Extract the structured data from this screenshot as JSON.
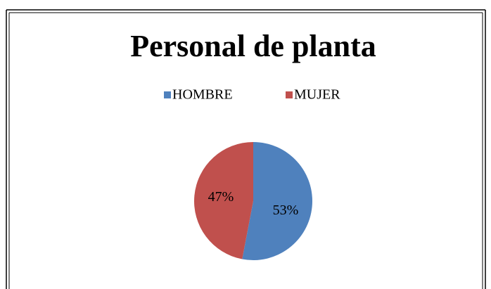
{
  "chart_data": {
    "type": "pie",
    "title": "Personal de planta",
    "categories": [
      "HOMBRE",
      "MUJER"
    ],
    "values": [
      53,
      47
    ],
    "value_labels": [
      "53%",
      "47%"
    ],
    "colors": [
      "#4f81bd",
      "#c0504d"
    ],
    "legend": "top"
  }
}
